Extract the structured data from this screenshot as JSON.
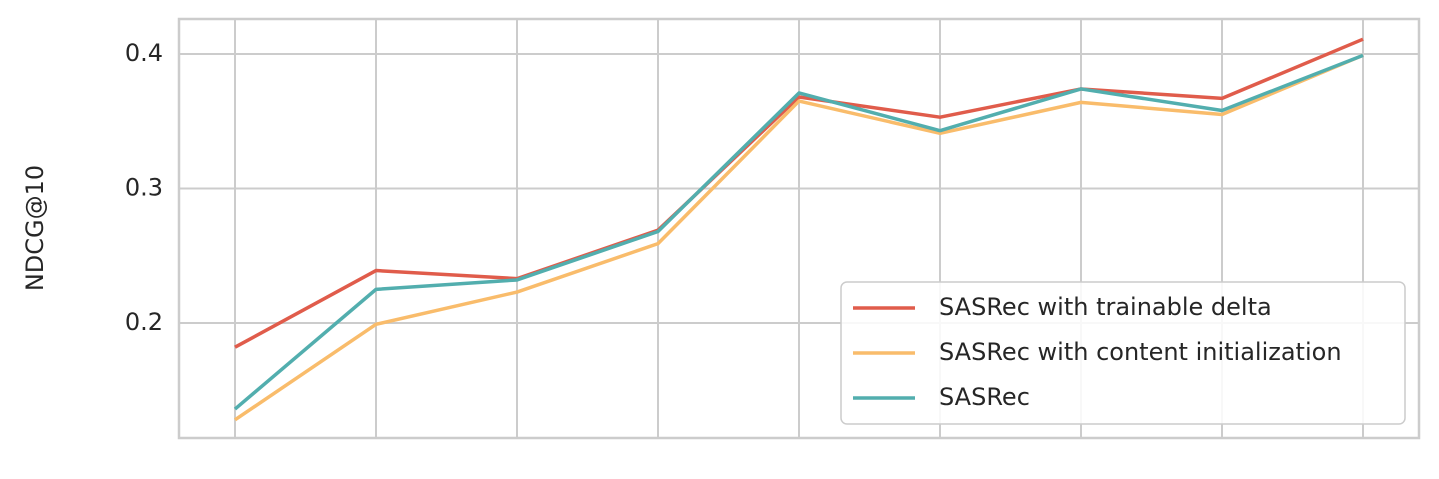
{
  "chart_data": {
    "type": "line",
    "y_label": "NDCG@10",
    "categories": [
      null,
      null,
      null,
      null,
      null,
      null,
      null,
      null,
      null
    ],
    "series": [
      {
        "name": "SASRec with trainable delta",
        "color": "#e05c4b",
        "values": [
          0.182,
          0.239,
          0.233,
          0.269,
          0.368,
          0.353,
          0.374,
          0.367,
          0.411
        ]
      },
      {
        "name": "SASRec with content initialization",
        "color": "#f9bc6b",
        "values": [
          0.128,
          0.199,
          0.223,
          0.259,
          0.365,
          0.341,
          0.364,
          0.355,
          0.399
        ]
      },
      {
        "name": "SASRec",
        "color": "#52aeae",
        "values": [
          0.136,
          0.225,
          0.232,
          0.268,
          0.371,
          0.343,
          0.374,
          0.358,
          0.399
        ]
      }
    ],
    "ylim": [
      0.1145,
      0.426
    ],
    "yticks": [
      0.2,
      0.3,
      0.4
    ],
    "grid": true,
    "legend": "lower right"
  }
}
